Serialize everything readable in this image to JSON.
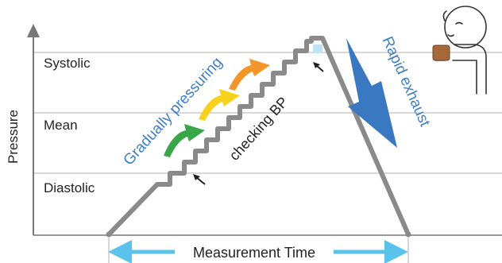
{
  "diagram": {
    "y_axis_label": "Pressure",
    "levels": [
      {
        "key": "systolic",
        "label": "Systolic"
      },
      {
        "key": "mean",
        "label": "Mean"
      },
      {
        "key": "diastolic",
        "label": "Diastolic"
      }
    ],
    "annotations": {
      "gradually_pressuring": "Gradually pressuring",
      "checking_bp": "checking BP",
      "rapid_exhaust": "Rapid exhaust"
    },
    "time_label": "Measurement Time"
  },
  "colors": {
    "trace": "#8a8a8a",
    "gridline": "#b0b0b0",
    "axis": "#777777",
    "text": "#222222",
    "annotation_blue": "#3f7fc4",
    "exhaust_arrow": "#3a78c2",
    "time_arrow": "#5bc2ec",
    "arrow_green": "#3aa64a",
    "arrow_yellow": "#f6d21c",
    "arrow_orange": "#f2962a",
    "cuff": "#a6683a",
    "peak_fill": "#bfe3f5"
  },
  "icons": [
    "person-icon",
    "cuff-icon",
    "pointer-arrow-icon"
  ]
}
